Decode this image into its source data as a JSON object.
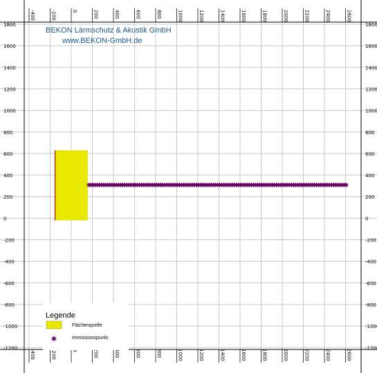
{
  "header": {
    "company": "BEKON Lärmschutz & Akustik GmbH",
    "website": "www.BEKON-GmbH.de"
  },
  "colors": {
    "grid": "#c8c8c8",
    "frame": "#000000",
    "area_source_fill": "#e8e800",
    "area_source_edge": "#cc0000",
    "immission_point": "#660066",
    "title": "#1a5a8a"
  },
  "legend": {
    "title": "Legende",
    "items": [
      {
        "label": "Flächenquelle",
        "symbol": "yellow-rectangle"
      },
      {
        "label": "Immissionspunkt",
        "symbol": "purple-asterisk"
      }
    ]
  },
  "plan": {
    "x_ticks": [
      "-400",
      "-200",
      "0",
      "200",
      "400",
      "600",
      "800",
      "1000",
      "1200",
      "1400",
      "1600",
      "1800",
      "2000",
      "2200",
      "2400",
      "2600"
    ],
    "y_ticks": [
      "1800",
      "1600",
      "1400",
      "1200",
      "1000",
      "800",
      "600",
      "400",
      "200",
      "0",
      "-200",
      "-400",
      "-600",
      "-800",
      "-1000",
      "-1200"
    ],
    "area_source": {
      "x_min": -360,
      "x_max": -50,
      "y_min": -50,
      "y_max": 600
    },
    "immission_line": {
      "x_start": -40,
      "x_end": 2400,
      "step": 20,
      "y": 280
    }
  }
}
